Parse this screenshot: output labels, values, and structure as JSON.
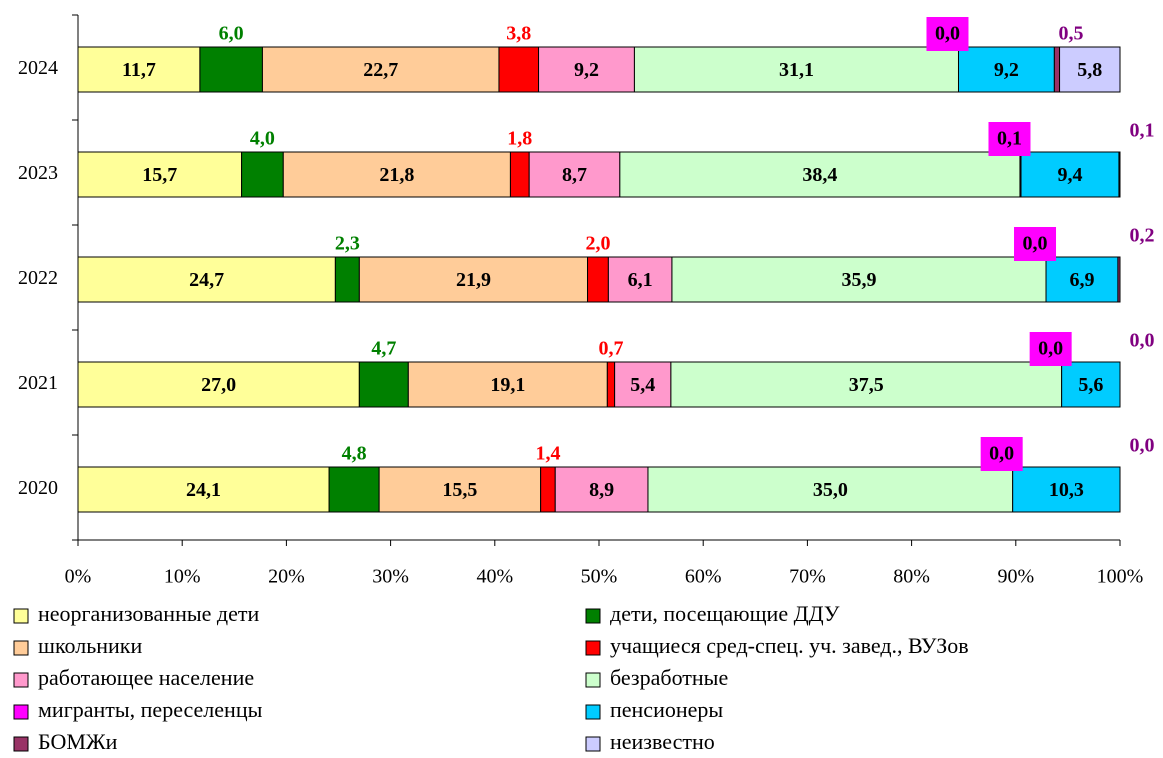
{
  "chart_data": {
    "type": "stacked_barh",
    "categories": [
      "2024",
      "2023",
      "2022",
      "2021",
      "2020"
    ],
    "xlim": [
      0,
      100
    ],
    "xticks": [
      {
        "value": 0,
        "label": "0%"
      },
      {
        "value": 10,
        "label": "10%"
      },
      {
        "value": 20,
        "label": "20%"
      },
      {
        "value": 30,
        "label": "30%"
      },
      {
        "value": 40,
        "label": "40%"
      },
      {
        "value": 50,
        "label": "50%"
      },
      {
        "value": 60,
        "label": "60%"
      },
      {
        "value": 70,
        "label": "70%"
      },
      {
        "value": 80,
        "label": "80%"
      },
      {
        "value": 90,
        "label": "90%"
      },
      {
        "value": 100,
        "label": "100%"
      }
    ],
    "series": [
      {
        "name": "неорганизованные дети",
        "color": "#ffff99",
        "values": [
          11.7,
          15.7,
          24.7,
          27.0,
          24.1
        ],
        "value_labels": [
          "11,7",
          "15,7",
          "24,7",
          "27,0",
          "24,1"
        ]
      },
      {
        "name": "дети, посещающие ДДУ",
        "color": "#008000",
        "values": [
          6.0,
          4.0,
          2.3,
          4.7,
          4.8
        ],
        "value_labels": [
          "6,0",
          "4,0",
          "2,3",
          "4,7",
          "4,8"
        ]
      },
      {
        "name": "школьники",
        "color": "#ffcc99",
        "values": [
          22.7,
          21.8,
          21.9,
          19.1,
          15.5
        ],
        "value_labels": [
          "22,7",
          "21,8",
          "21,9",
          "19,1",
          "15,5"
        ]
      },
      {
        "name": "учащиеся сред-спец. уч. завед., ВУЗов",
        "color": "#ff0000",
        "values": [
          3.8,
          1.8,
          2.0,
          0.7,
          1.4
        ],
        "value_labels": [
          "3,8",
          "1,8",
          "2,0",
          "0,7",
          "1,4"
        ]
      },
      {
        "name": "работающее население",
        "color": "#ff99cc",
        "values": [
          9.2,
          8.7,
          6.1,
          5.4,
          8.9
        ],
        "value_labels": [
          "9,2",
          "8,7",
          "6,1",
          "5,4",
          "8,9"
        ]
      },
      {
        "name": "безработные",
        "color": "#ccffcc",
        "values": [
          31.1,
          38.4,
          35.9,
          37.5,
          35.0
        ],
        "value_labels": [
          "31,1",
          "38,4",
          "35,9",
          "37,5",
          "35,0"
        ]
      },
      {
        "name": "мигранты, переселенцы",
        "color": "#ff00ff",
        "values": [
          0.0,
          0.1,
          0.0,
          0.0,
          0.0
        ],
        "value_labels": [
          "0,0",
          "0,1",
          "0,0",
          "0,0",
          "0,0"
        ]
      },
      {
        "name": "пенсионеры",
        "color": "#00ccff",
        "values": [
          9.2,
          9.4,
          6.9,
          5.6,
          10.3
        ],
        "value_labels": [
          "9,2",
          "9,4",
          "6,9",
          "5,6",
          "10,3"
        ]
      },
      {
        "name": "БОМЖи",
        "color": "#993366",
        "values": [
          0.5,
          0.1,
          0.2,
          0.0,
          0.0
        ],
        "value_labels": [
          "0,5",
          "0,1",
          "0,2",
          "0,0",
          "0,0"
        ]
      },
      {
        "name": "неизвестно",
        "color": "#ccccff",
        "values": [
          5.8,
          null,
          null,
          null,
          null
        ],
        "value_labels": [
          "5,8",
          null,
          null,
          null,
          null
        ]
      }
    ]
  }
}
